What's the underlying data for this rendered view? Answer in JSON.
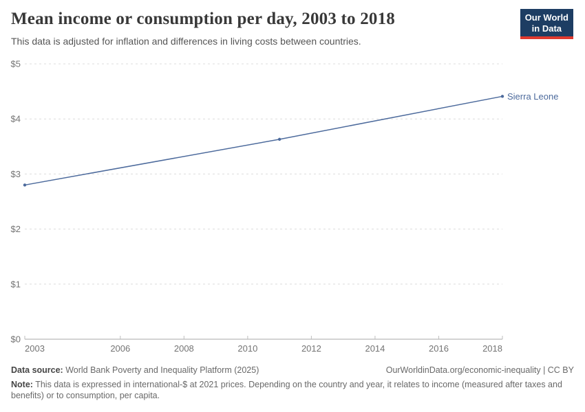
{
  "header": {
    "title": "Mean income or consumption per day, 2003 to 2018",
    "subtitle": "This data is adjusted for inflation and differences in living costs between countries.",
    "logo": {
      "line1": "Our World",
      "line2": "in Data",
      "bg_color": "#1d3d63",
      "accent_color": "#e0392e"
    }
  },
  "chart_data": {
    "type": "line",
    "title": "Mean income or consumption per day, 2003 to 2018",
    "xlabel": "",
    "ylabel": "",
    "xlim": [
      2003,
      2018
    ],
    "ylim": [
      0,
      5
    ],
    "x_ticks": [
      2003,
      2006,
      2008,
      2010,
      2012,
      2014,
      2016,
      2018
    ],
    "y_ticks": [
      "$0",
      "$1",
      "$2",
      "$3",
      "$4",
      "$5"
    ],
    "y_tick_values": [
      0,
      1,
      2,
      3,
      4,
      5
    ],
    "grid": "horizontal dashed, y-axis solid baseline, legend as end-of-line label",
    "series": [
      {
        "name": "Sierra Leone",
        "color": "#4C6A9C",
        "x": [
          2003,
          2011,
          2018
        ],
        "values": [
          2.8,
          3.63,
          4.41
        ]
      }
    ]
  },
  "footer": {
    "datasource_label": "Data source:",
    "datasource_text": " World Bank Poverty and Inequality Platform (2025)",
    "attribution": "OurWorldinData.org/economic-inequality | CC BY",
    "note_label": "Note:",
    "note_text": " This data is expressed in international-$ at 2021 prices. Depending on the country and year, it relates to income (measured after taxes and benefits) or to consumption, per capita."
  }
}
